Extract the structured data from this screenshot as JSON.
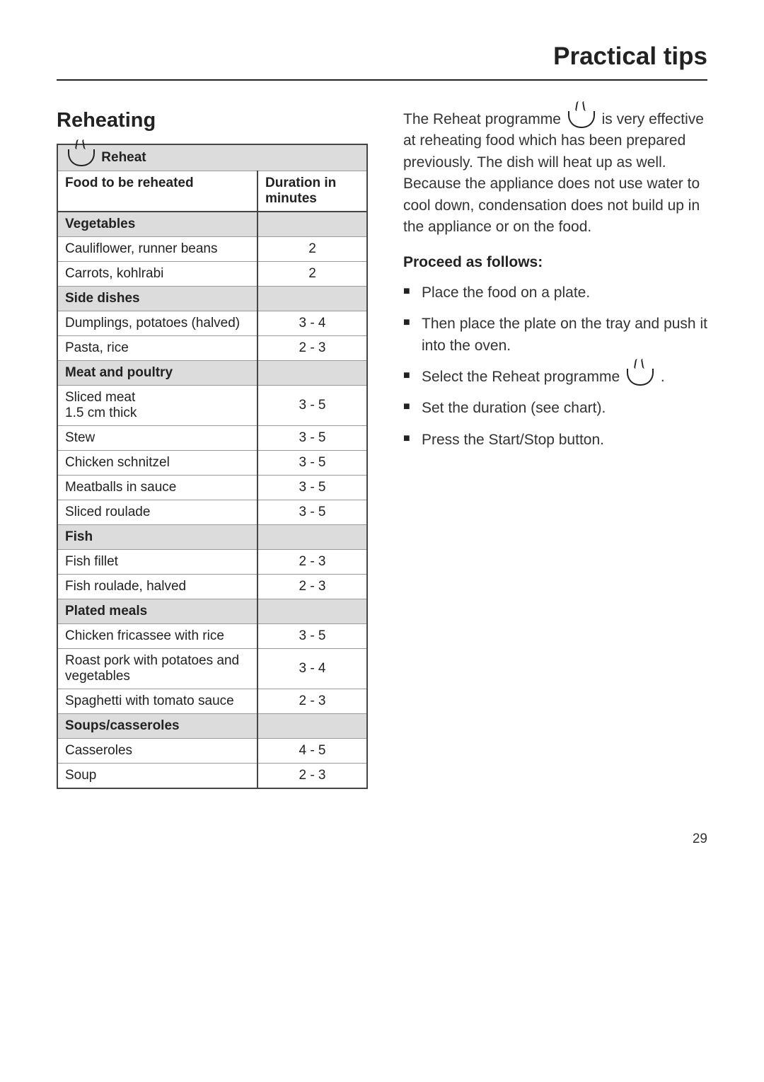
{
  "page": {
    "header_title": "Practical tips",
    "page_number": "29"
  },
  "left": {
    "section_heading": "Reheating",
    "table": {
      "title": "Reheat",
      "col1": "Food to be reheated",
      "col2": "Duration in minutes",
      "cat1": "Vegetables",
      "r1a": "Cauliflower, runner beans",
      "r1a_d": "2",
      "r1b": "Carrots, kohlrabi",
      "r1b_d": "2",
      "cat2": "Side dishes",
      "r2a": "Dumplings, potatoes (halved)",
      "r2a_d": "3 - 4",
      "r2b": "Pasta, rice",
      "r2b_d": "2 - 3",
      "cat3": "Meat and poultry",
      "r3a": "Sliced meat\n1.5 cm thick",
      "r3a_d": "3 - 5",
      "r3b": "Stew",
      "r3b_d": "3 - 5",
      "r3c": "Chicken schnitzel",
      "r3c_d": "3 - 5",
      "r3d": "Meatballs in sauce",
      "r3d_d": "3 - 5",
      "r3e": "Sliced roulade",
      "r3e_d": "3 - 5",
      "cat4": "Fish",
      "r4a": "Fish fillet",
      "r4a_d": "2 - 3",
      "r4b": "Fish roulade, halved",
      "r4b_d": "2 - 3",
      "cat5": "Plated meals",
      "r5a": "Chicken fricassee with rice",
      "r5a_d": "3 - 5",
      "r5b": "Roast pork with potatoes and vegetables",
      "r5b_d": "3 - 4",
      "r5c": "Spaghetti with tomato sauce",
      "r5c_d": "2 - 3",
      "cat6": "Soups/casseroles",
      "r6a": "Casseroles",
      "r6a_d": "4 - 5",
      "r6b": "Soup",
      "r6b_d": "2 - 3"
    }
  },
  "right": {
    "intro_a": "The Reheat programme ",
    "intro_b": " is very effective at reheating food which has been prepared previously. The dish will heat up as well. Because the appliance does not use water to cool down, condensation does not build up in the appliance or on the food.",
    "sub_heading": "Proceed as follows:",
    "steps": {
      "s1": "Place the food on a plate.",
      "s2": "Then place the plate on the tray and push it into the oven.",
      "s3a": "Select the Reheat programme ",
      "s3b": ".",
      "s4": "Set the duration (see chart).",
      "s5": "Press the Start/Stop button."
    }
  }
}
